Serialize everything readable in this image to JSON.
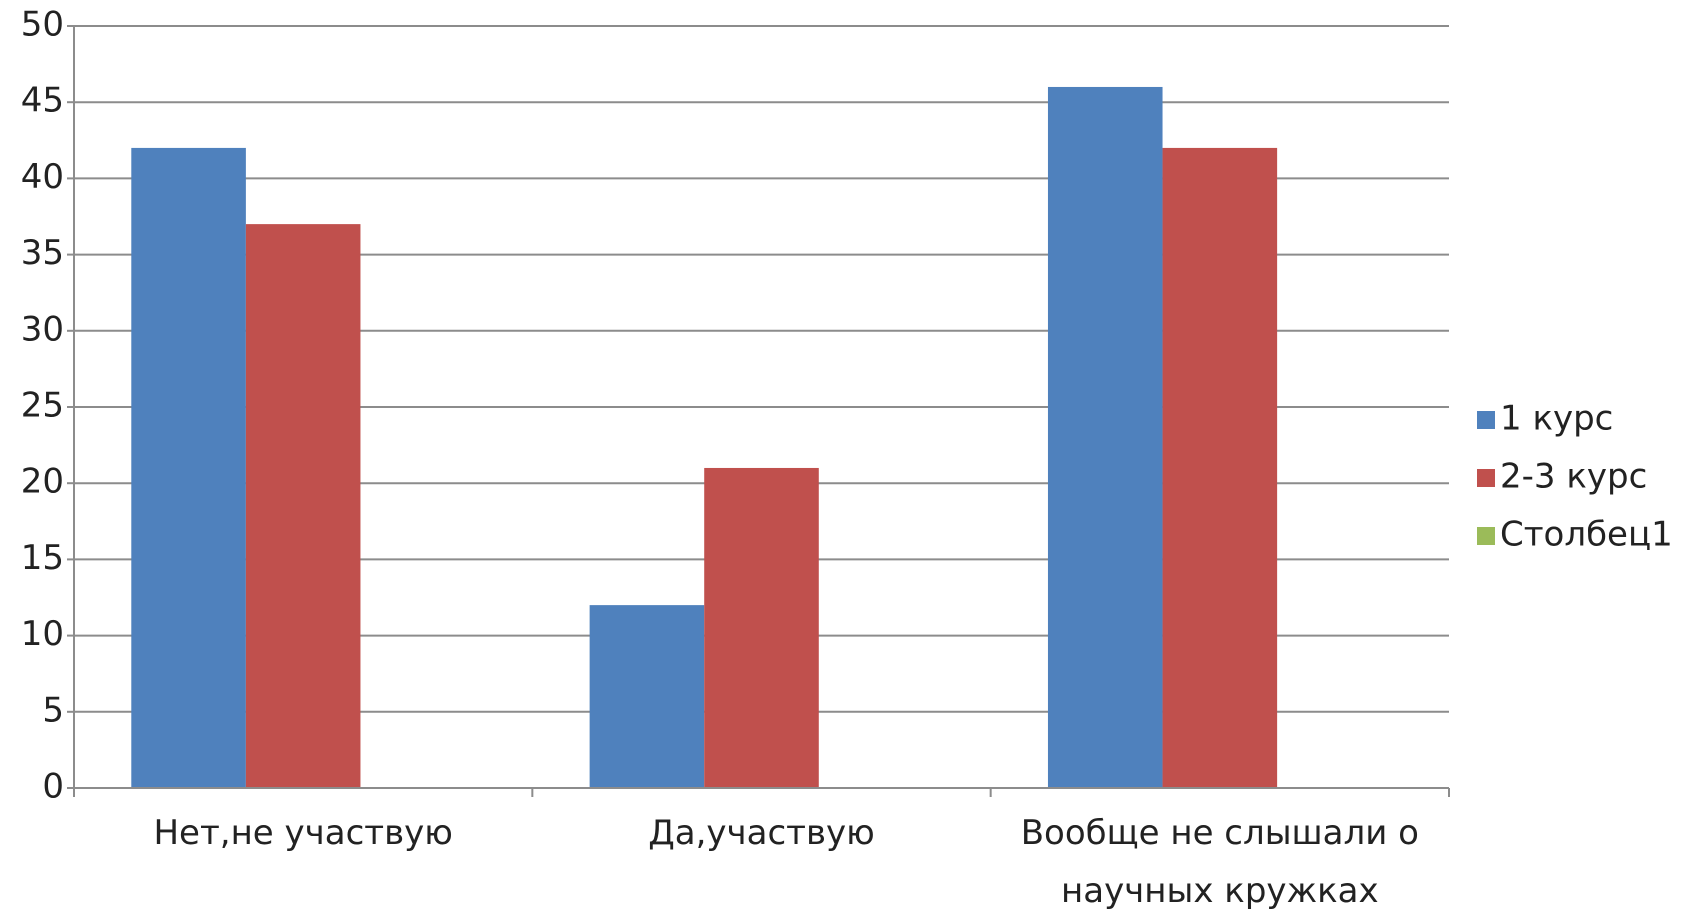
{
  "chart_data": {
    "type": "bar",
    "categories": [
      "Нет,не участвую",
      "Да,участвую",
      "Вообще не слышали о научных кружках"
    ],
    "series": [
      {
        "name": "1 курс",
        "color": "#4f81bd",
        "values": [
          42,
          12,
          46
        ]
      },
      {
        "name": "2-3 курс",
        "color": "#c0504d",
        "values": [
          37,
          21,
          42
        ]
      },
      {
        "name": "Столбец1",
        "color": "#9bbb59",
        "values": [
          null,
          null,
          null
        ]
      }
    ],
    "ylim": [
      0,
      50
    ],
    "yticks": [
      0,
      5,
      10,
      15,
      20,
      25,
      30,
      35,
      40,
      45,
      50
    ],
    "grid": true,
    "legend": "right"
  }
}
